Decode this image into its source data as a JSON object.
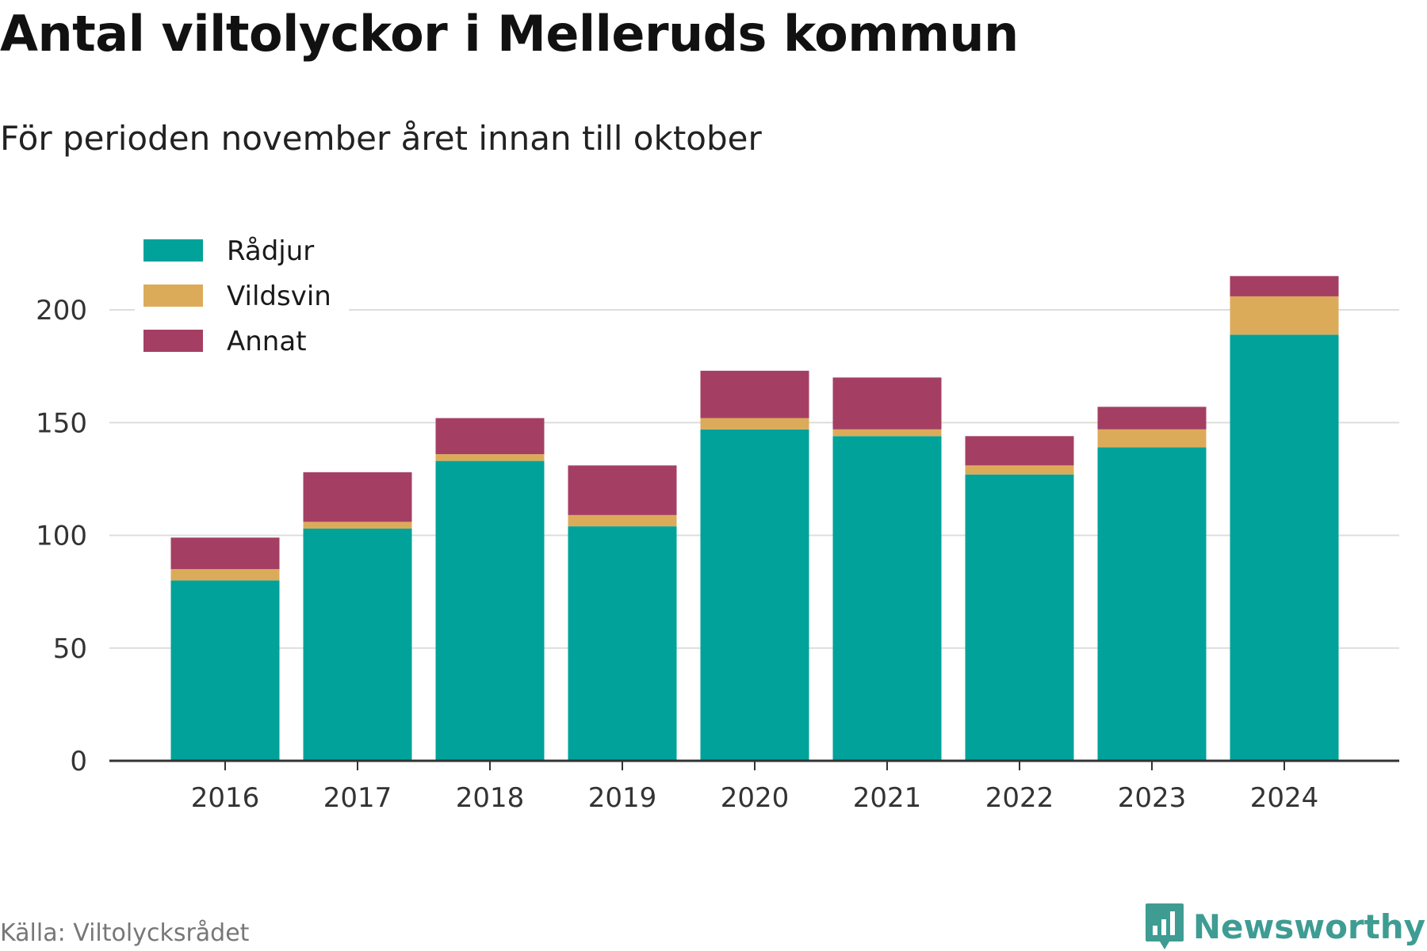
{
  "title": "Antal viltolyckor i Melleruds kommun",
  "subtitle": "För perioden november året innan till oktober",
  "source": "Källa: Viltolycksrådet",
  "brand": {
    "name": "Newsworthy",
    "icon": "newsworthy-logo-icon",
    "color": "#3e9c93"
  },
  "chart_data": {
    "type": "bar",
    "stacked": true,
    "categories": [
      "2016",
      "2017",
      "2018",
      "2019",
      "2020",
      "2021",
      "2022",
      "2023",
      "2024"
    ],
    "series": [
      {
        "name": "Rådjur",
        "color": "#00a29a",
        "values": [
          80,
          103,
          133,
          104,
          147,
          144,
          127,
          139,
          189
        ]
      },
      {
        "name": "Vildsvin",
        "color": "#dcab5a",
        "values": [
          5,
          3,
          3,
          5,
          5,
          3,
          4,
          8,
          17
        ]
      },
      {
        "name": "Annat",
        "color": "#a43f63",
        "values": [
          14,
          22,
          16,
          22,
          21,
          23,
          13,
          10,
          9
        ]
      }
    ],
    "ylim": [
      0,
      215
    ],
    "yticks": [
      0,
      50,
      100,
      150,
      200
    ],
    "grid": true,
    "legend_position": "top-left"
  }
}
